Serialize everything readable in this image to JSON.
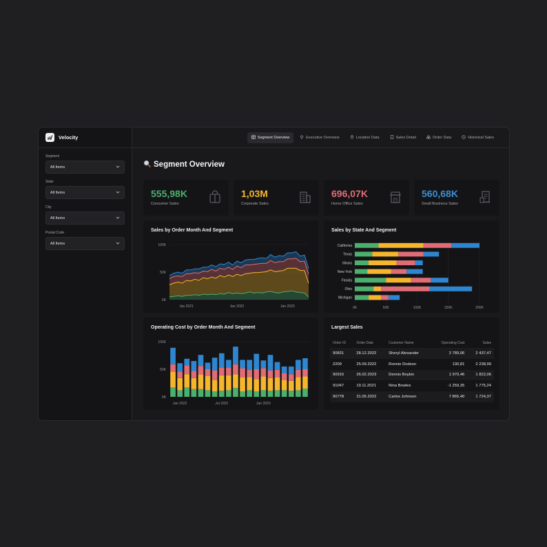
{
  "app": {
    "name": "Velocity",
    "icon": "chart-logo-icon"
  },
  "sidebar": {
    "filters": [
      {
        "label": "Segment",
        "value": "All Items"
      },
      {
        "label": "State",
        "value": "All Items"
      },
      {
        "label": "City",
        "value": "All Items"
      },
      {
        "label": "Postal Code",
        "value": "All Items"
      }
    ]
  },
  "nav": {
    "tabs": [
      {
        "label": "Segment Overview",
        "icon": "dashboard-icon",
        "active": true
      },
      {
        "label": "Executive Overview",
        "icon": "diamond-icon",
        "active": false
      },
      {
        "label": "Location Data",
        "icon": "map-pin-icon",
        "active": false
      },
      {
        "label": "Sales Detail",
        "icon": "receipt-icon",
        "active": false
      },
      {
        "label": "Order Data",
        "icon": "boxes-icon",
        "active": false
      },
      {
        "label": "Historical Sales",
        "icon": "clock-icon",
        "active": false
      }
    ]
  },
  "page": {
    "title": "Segment Overview",
    "icon": "magnifier-icon"
  },
  "kpis": [
    {
      "value": "555,98K",
      "label": "Consumer Sales",
      "color": "#4caf6e",
      "icon": "shopping-bag-icon"
    },
    {
      "value": "1,03M",
      "label": "Corporate Sales",
      "color": "#f5b62e",
      "icon": "building-icon"
    },
    {
      "value": "696,07K",
      "label": "Home Office Sales",
      "color": "#e06c75",
      "icon": "store-icon"
    },
    {
      "value": "560,68K",
      "label": "Small Business Sales",
      "color": "#3b8fd6",
      "icon": "receipt-icon"
    }
  ],
  "colors": {
    "consumer": "#4caf6e",
    "corporate": "#f5b62e",
    "home_office": "#e06c75",
    "small_business": "#2f86d0"
  },
  "charts": {
    "sales_by_month": {
      "title": "Sales by Order Month And Segment",
      "y_ticks": [
        "100K",
        "50K",
        "0K"
      ],
      "x_ticks": [
        "Jan 2021",
        "Jan 2022",
        "Jan 2023"
      ]
    },
    "sales_by_state": {
      "title": "Sales by State And Segment",
      "x_ticks": [
        "0K",
        "50K",
        "100K",
        "150K",
        "200K"
      ]
    },
    "operating_cost": {
      "title": "Operating Cost by Order Month And Segment",
      "y_ticks": [
        "100K",
        "50K",
        "0K"
      ],
      "x_ticks": [
        "Jan 2022",
        "Jul 2022",
        "Jan 2023"
      ]
    }
  },
  "chart_data": [
    {
      "type": "area",
      "title": "Sales by Order Month And Segment",
      "x": [
        "2020-09",
        "2020-10",
        "2020-11",
        "2020-12",
        "2021-01",
        "2021-02",
        "2021-03",
        "2021-04",
        "2021-05",
        "2021-06",
        "2021-07",
        "2021-08",
        "2021-09",
        "2021-10",
        "2021-11",
        "2021-12",
        "2022-01",
        "2022-02",
        "2022-03",
        "2022-04",
        "2022-05",
        "2022-06",
        "2022-07",
        "2022-08",
        "2022-09",
        "2022-10",
        "2022-11",
        "2022-12",
        "2023-01",
        "2023-02",
        "2023-03",
        "2023-04",
        "2023-05",
        "2023-06"
      ],
      "xlabel_ticks": [
        "Jan 2021",
        "Jan 2022",
        "Jan 2023"
      ],
      "ylim": [
        0,
        100000
      ],
      "stacked": true,
      "series": [
        {
          "name": "Consumer",
          "values": [
            5000,
            6000,
            7000,
            6000,
            8000,
            8000,
            9000,
            8000,
            10000,
            9000,
            10000,
            9000,
            11000,
            10000,
            13000,
            11000,
            12000,
            11000,
            12000,
            14000,
            12000,
            13000,
            12000,
            14000,
            15000,
            13000,
            12000,
            14000,
            15000,
            16000,
            14000,
            13000,
            12000,
            5000
          ]
        },
        {
          "name": "Corporate",
          "values": [
            22000,
            24000,
            25000,
            24000,
            27000,
            26000,
            28000,
            27000,
            30000,
            29000,
            31000,
            30000,
            33000,
            31000,
            32000,
            31000,
            34000,
            33000,
            35000,
            34000,
            37000,
            36000,
            38000,
            37000,
            39000,
            38000,
            40000,
            39000,
            42000,
            41000,
            43000,
            40000,
            41000,
            25000
          ]
        },
        {
          "name": "Home Office",
          "values": [
            11000,
            12000,
            11000,
            12000,
            12000,
            13000,
            12000,
            13000,
            12000,
            13000,
            14000,
            13000,
            13000,
            14000,
            14000,
            13000,
            15000,
            14000,
            16000,
            15000,
            15000,
            16000,
            16000,
            15000,
            17000,
            16000,
            17000,
            16000,
            17000,
            17000,
            18000,
            16000,
            17000,
            16000
          ]
        },
        {
          "name": "Small Business",
          "values": [
            6000,
            6000,
            7000,
            6000,
            7000,
            7000,
            7000,
            8000,
            7000,
            8000,
            8000,
            8000,
            8000,
            9000,
            9000,
            8000,
            9000,
            9000,
            9000,
            10000,
            9000,
            10000,
            10000,
            9000,
            11000,
            10000,
            11000,
            10000,
            11000,
            11000,
            12000,
            10000,
            11000,
            11000
          ]
        }
      ]
    },
    {
      "type": "bar",
      "orientation": "horizontal",
      "stacked": true,
      "title": "Sales by State And Segment",
      "categories": [
        "California",
        "Texas",
        "Illinois",
        "New York",
        "Florida",
        "Ohio",
        "Michigan"
      ],
      "xlim": [
        0,
        200000
      ],
      "series": [
        {
          "name": "Consumer",
          "values": [
            38000,
            28000,
            22000,
            20000,
            50000,
            30000,
            22000
          ]
        },
        {
          "name": "Corporate",
          "values": [
            72000,
            42000,
            45000,
            38000,
            40000,
            12000,
            20000
          ]
        },
        {
          "name": "Home Office",
          "values": [
            45000,
            40000,
            30000,
            25000,
            32000,
            78000,
            12000
          ]
        },
        {
          "name": "Small Business",
          "values": [
            45000,
            25000,
            12000,
            26000,
            28000,
            68000,
            18000
          ]
        }
      ]
    },
    {
      "type": "bar",
      "stacked": true,
      "title": "Operating Cost by Order Month And Segment",
      "categories": [
        "2021-12",
        "2022-01",
        "2022-02",
        "2022-03",
        "2022-04",
        "2022-05",
        "2022-06",
        "2022-07",
        "2022-08",
        "2022-09",
        "2022-10",
        "2022-11",
        "2022-12",
        "2023-01",
        "2023-02",
        "2023-03",
        "2023-04",
        "2023-05",
        "2023-06",
        "2023-07"
      ],
      "xlabel_ticks": [
        "Jan 2022",
        "Jul 2022",
        "Jan 2023"
      ],
      "ylim": [
        0,
        100000
      ],
      "series": [
        {
          "name": "Consumer",
          "values": [
            17000,
            12000,
            17000,
            14000,
            14000,
            12000,
            10000,
            11000,
            12000,
            16000,
            10000,
            12000,
            10000,
            12000,
            11000,
            12000,
            12000,
            11000,
            12000,
            15000
          ]
        },
        {
          "name": "Corporate",
          "values": [
            28000,
            22000,
            24000,
            20000,
            26000,
            26000,
            20000,
            28000,
            27000,
            25000,
            25000,
            24000,
            22000,
            25000,
            23000,
            23000,
            18000,
            18000,
            24000,
            22000
          ]
        },
        {
          "name": "Home Office",
          "values": [
            14000,
            12000,
            16000,
            13000,
            16000,
            12000,
            18000,
            14000,
            14000,
            18000,
            17000,
            13000,
            18000,
            15000,
            14000,
            14000,
            13000,
            12000,
            13000,
            13000
          ]
        },
        {
          "name": "Small Business",
          "values": [
            30000,
            15000,
            12000,
            18000,
            20000,
            12000,
            23000,
            26000,
            14000,
            32000,
            15000,
            18000,
            28000,
            14000,
            28000,
            14000,
            12000,
            14000,
            18000,
            20000
          ]
        }
      ]
    },
    {
      "type": "table",
      "title": "Largest Sales",
      "columns": [
        "Order ID",
        "Order Date",
        "Customer Name",
        "Operating Cost",
        "Sales"
      ],
      "rows": [
        [
          "90831",
          "28.12.2022",
          "Sheryl Alexander",
          "2 789,06",
          "2 437,47"
        ],
        [
          "2209",
          "25.09.2022",
          "Ronnie Dodson",
          "130,81",
          "2 238,99"
        ],
        [
          "90916",
          "26.02.2023",
          "Dennis Boykin",
          "1 970,46",
          "1 822,06"
        ],
        [
          "91047",
          "19.11.2021",
          "Nina Bowles",
          "-1 259,35",
          "1 775,24"
        ],
        [
          "90778",
          "31.05.2022",
          "Carlos Johnson",
          "7 865,40",
          "1 724,37"
        ]
      ]
    }
  ],
  "table": {
    "title": "Largest Sales",
    "columns": [
      "Order ID",
      "Order Date",
      "Customer Name",
      "Operating Cost",
      "Sales"
    ]
  }
}
